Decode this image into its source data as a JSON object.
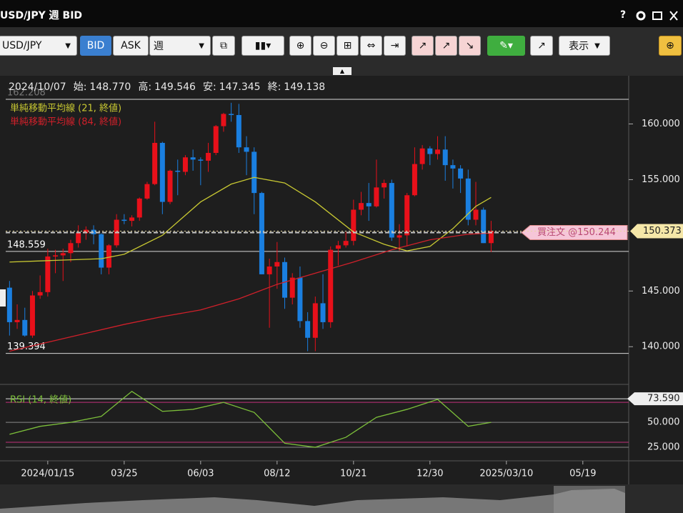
{
  "window": {
    "title": "USD/JPY 週 BID",
    "help": "?"
  },
  "toolbar": {
    "symbol": "USD/JPY",
    "bid": "BID",
    "ask": "ASK",
    "period": "週",
    "display": "表示"
  },
  "info": {
    "date": "2024/10/07",
    "fields": [
      {
        "label": "始:",
        "value": "148.770"
      },
      {
        "label": "高:",
        "value": "149.546"
      },
      {
        "label": "安:",
        "value": "147.345"
      },
      {
        "label": "終:",
        "value": "149.138"
      }
    ]
  },
  "chart": {
    "type": "candlestick",
    "xlim": [
      -0.5,
      81
    ],
    "ylim": [
      137,
      164.2
    ],
    "xticks": [
      {
        "value": 5,
        "label": "2024/01/15"
      },
      {
        "value": 15,
        "label": "03/25"
      },
      {
        "value": 25,
        "label": "06/03"
      },
      {
        "value": 35,
        "label": "08/12"
      },
      {
        "value": 45,
        "label": "10/21"
      },
      {
        "value": 55,
        "label": "12/30"
      },
      {
        "value": 65,
        "label": "2025/03/10"
      },
      {
        "value": 75,
        "label": "05/19"
      }
    ],
    "yticks": [
      {
        "value": 140,
        "label": "140.000"
      },
      {
        "value": 145,
        "label": "145.000"
      },
      {
        "value": 155,
        "label": "155.000"
      },
      {
        "value": 160,
        "label": "160.000"
      }
    ],
    "up_color": "#e8101a",
    "down_color": "#1a7fe0",
    "candles": {
      "open": [
        145.3,
        142.2,
        142.4,
        141.0,
        144.6,
        144.9,
        148.1,
        148.2,
        148.4,
        149.3,
        150.2,
        150.5,
        150.1,
        147.1,
        149.1,
        151.4,
        151.3,
        151.6,
        153.3,
        154.6,
        158.3,
        153.0,
        155.8,
        155.7,
        157.0,
        156.8,
        156.7,
        157.4,
        159.8,
        160.9,
        160.8,
        157.9,
        157.5,
        153.8,
        146.5,
        147.2,
        147.6,
        144.4,
        146.2,
        142.3,
        140.8,
        143.9,
        142.2,
        148.8,
        149.1,
        149.5,
        152.3,
        152.9,
        152.6,
        154.3,
        154.7,
        149.8,
        150.0,
        153.6,
        156.4,
        157.8,
        157.3,
        157.7,
        156.3,
        156.0,
        155.1,
        151.4,
        152.3,
        149.3
      ],
      "high": [
        145.9,
        143.8,
        143.5,
        145.0,
        146.4,
        148.8,
        148.7,
        148.8,
        149.6,
        150.9,
        150.8,
        150.9,
        150.2,
        149.2,
        151.9,
        151.9,
        151.8,
        153.4,
        154.8,
        160.2,
        158.4,
        155.9,
        156.8,
        157.2,
        157.7,
        157.0,
        158.3,
        159.9,
        161.0,
        161.9,
        161.8,
        158.9,
        157.9,
        153.9,
        147.9,
        149.4,
        148.0,
        146.6,
        147.2,
        143.1,
        144.5,
        146.5,
        149.0,
        149.5,
        150.3,
        153.2,
        153.9,
        154.7,
        156.8,
        155.0,
        155.0,
        151.0,
        153.8,
        157.9,
        158.1,
        158.0,
        158.9,
        158.9,
        156.8,
        156.3,
        155.9,
        154.8,
        152.5,
        151.3
      ],
      "low": [
        141.0,
        141.6,
        140.9,
        140.8,
        144.3,
        144.5,
        146.6,
        145.9,
        147.6,
        148.9,
        149.6,
        149.2,
        146.5,
        146.5,
        148.9,
        151.0,
        150.8,
        151.3,
        153.2,
        154.5,
        151.9,
        152.8,
        153.6,
        155.4,
        155.8,
        154.5,
        155.7,
        157.2,
        159.3,
        160.2,
        157.4,
        155.4,
        151.9,
        146.5,
        141.7,
        145.2,
        143.4,
        143.8,
        141.7,
        139.6,
        139.6,
        141.6,
        141.7,
        147.3,
        148.9,
        149.1,
        151.8,
        151.3,
        152.5,
        153.3,
        149.5,
        148.6,
        149.0,
        153.5,
        155.9,
        156.3,
        156.8,
        154.9,
        154.2,
        153.8,
        150.9,
        150.9,
        149.3,
        148.5
      ],
      "close": [
        142.2,
        142.4,
        141.0,
        144.6,
        144.9,
        148.1,
        148.2,
        148.4,
        149.3,
        150.2,
        150.5,
        150.1,
        147.1,
        149.1,
        151.4,
        151.3,
        151.6,
        153.3,
        154.6,
        158.3,
        153.0,
        155.8,
        155.7,
        157.0,
        156.8,
        156.7,
        157.4,
        159.8,
        160.9,
        160.8,
        157.9,
        157.5,
        153.8,
        146.5,
        147.2,
        147.6,
        144.4,
        146.2,
        142.3,
        140.8,
        143.9,
        142.2,
        148.7,
        149.1,
        149.5,
        152.3,
        152.9,
        152.6,
        154.3,
        154.7,
        149.8,
        150.0,
        153.6,
        156.4,
        157.8,
        157.3,
        157.7,
        156.3,
        156.0,
        155.1,
        151.4,
        152.3,
        149.3,
        150.4
      ]
    },
    "indicators": [
      {
        "name": "単純移動平均線 (21, 終値)",
        "color": "#c8c832",
        "x": [
          0,
          4,
          8,
          12,
          15,
          20,
          25,
          29,
          32,
          36,
          40,
          45,
          49,
          52,
          55,
          58,
          61,
          63
        ],
        "values": [
          147.6,
          147.7,
          147.8,
          147.9,
          148.3,
          150.0,
          153.0,
          154.6,
          155.2,
          154.7,
          153.0,
          150.3,
          149.2,
          148.6,
          149.0,
          150.6,
          152.6,
          153.4
        ]
      },
      {
        "name": "単純移動平均線 (84, 終値)",
        "color": "#d0202a",
        "x": [
          0,
          5,
          10,
          15,
          20,
          25,
          30,
          35,
          40,
          45,
          50,
          55,
          60,
          63
        ],
        "values": [
          139.6,
          140.4,
          141.2,
          142.0,
          142.7,
          143.3,
          144.3,
          145.6,
          146.6,
          147.6,
          148.7,
          149.6,
          150.1,
          150.2
        ]
      }
    ],
    "levels": [
      {
        "value": 162.208,
        "label": "162.208"
      },
      {
        "value": 148.559,
        "label": "148.559"
      },
      {
        "value": 139.394,
        "label": "139.394"
      }
    ],
    "last_price": {
      "value": 150.373,
      "label": "150.373"
    },
    "order": {
      "value": 150.244,
      "label": "買注文 @150.244"
    }
  },
  "rsi": {
    "name": "RSI (14, 終値)",
    "color": "#7cbf3a",
    "ylim": [
      15,
      83
    ],
    "yticks": [
      {
        "value": 25,
        "label": "25.000"
      },
      {
        "value": 50,
        "label": "50.000"
      }
    ],
    "bands": [
      70,
      30
    ],
    "band_color": "#c0307a",
    "level": {
      "value": 73.59,
      "label": "73.590"
    },
    "x": [
      0,
      4,
      8,
      12,
      16,
      20,
      24,
      28,
      32,
      36,
      40,
      44,
      48,
      52,
      56,
      60,
      63
    ],
    "values": [
      38,
      46,
      50,
      56,
      81,
      61,
      63,
      70,
      60,
      29,
      25,
      35,
      55,
      63,
      73,
      46,
      50
    ]
  }
}
